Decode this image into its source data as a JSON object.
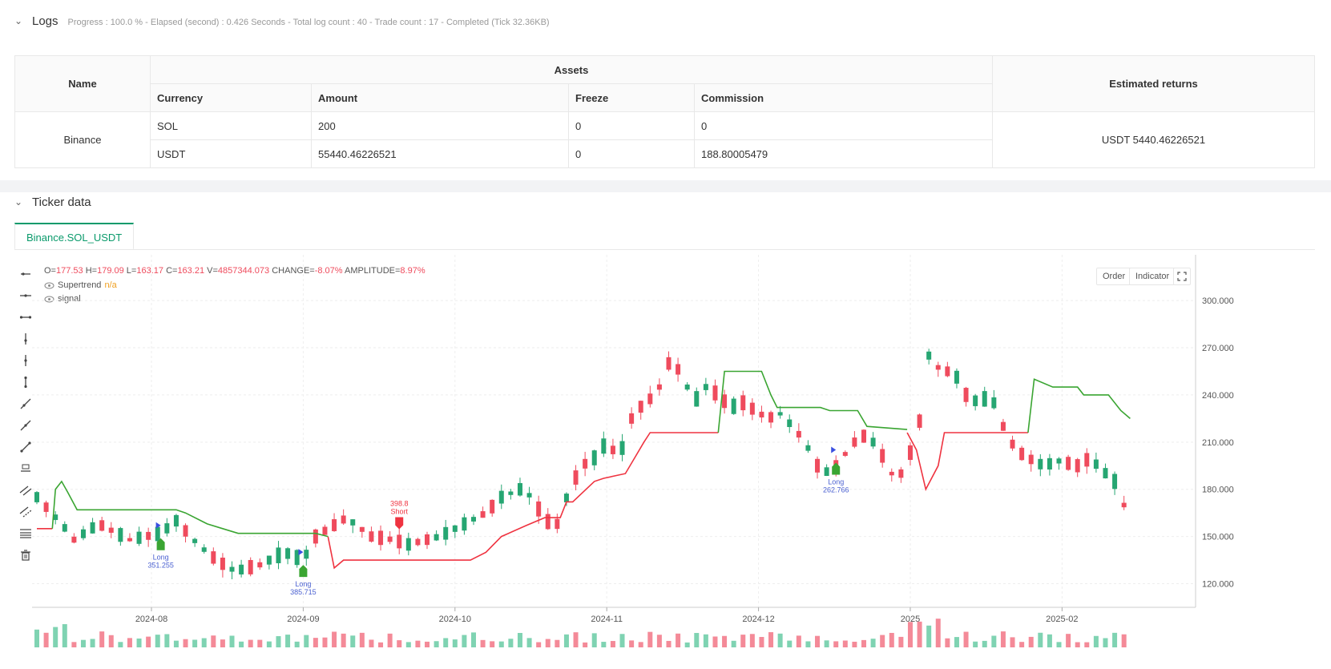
{
  "logs": {
    "title": "Logs",
    "meta": "Progress : 100.0 % - Elapsed (second) : 0.426  Seconds - Total log count : 40 - Trade count : 17 - Completed (Tick 32.36KB)",
    "table": {
      "col_name": "Name",
      "col_assets": "Assets",
      "col_returns": "Estimated returns",
      "sub_headers": [
        "Currency",
        "Amount",
        "Freeze",
        "Commission"
      ],
      "exchange": "Binance",
      "rows": [
        {
          "currency": "SOL",
          "amount": "200",
          "freeze": "0",
          "commission": "0"
        },
        {
          "currency": "USDT",
          "amount": "55440.46226521",
          "freeze": "0",
          "commission": "188.80005479"
        }
      ],
      "estimated_returns": "USDT 5440.46226521"
    }
  },
  "ticker": {
    "title": "Ticker data",
    "tab_label": "Binance.SOL_USDT",
    "ohlc": {
      "o_label": "O=",
      "o": "177.53",
      "h_label": "H=",
      "h": "179.09",
      "l_label": "L=",
      "l": "163.17",
      "c_label": "C=",
      "c": "163.21",
      "v_label": "V=",
      "v": "4857344.073",
      "change_label": "CHANGE=",
      "change": "-8.07%",
      "amp_label": "AMPLITUDE=",
      "amp": "8.97%"
    },
    "indicators": [
      {
        "name": "Supertrend",
        "value": "n/a"
      },
      {
        "name": "signal",
        "value": ""
      }
    ],
    "buttons": {
      "order": "Order",
      "indicator": "Indicator"
    },
    "colors": {
      "up": "#26a672",
      "down": "#ef4b5d",
      "vol_up": "#7fd3b2",
      "vol_down": "#f48a98",
      "st_up": "#ef3340",
      "st_down": "#3aa532",
      "accent": "#0a9a6b"
    }
  },
  "chart_data": {
    "type": "candlestick",
    "x_ticks": [
      "2024-08",
      "2024-09",
      "2024-10",
      "2024-11",
      "2024-12",
      "2025",
      "2025-02"
    ],
    "y_ticks": [
      "300.0000",
      "270.0000",
      "240.0000",
      "210.0000",
      "180.0000",
      "150.0000",
      "120.0000"
    ],
    "y_range": [
      105,
      325
    ],
    "supertrend_up_segments": [
      [
        [
          0,
          155
        ],
        [
          5,
          155
        ]
      ],
      [
        [
          94,
          150
        ],
        [
          96,
          130
        ],
        [
          99,
          135
        ],
        [
          140,
          135
        ],
        [
          145,
          140
        ],
        [
          150,
          150
        ],
        [
          158,
          157
        ],
        [
          164,
          162
        ],
        [
          169,
          162
        ],
        [
          171,
          172
        ],
        [
          173,
          172
        ],
        [
          180,
          185
        ],
        [
          183,
          187
        ],
        [
          190,
          190
        ],
        [
          193,
          200
        ],
        [
          196,
          210
        ],
        [
          198,
          216
        ],
        [
          220,
          216
        ]
      ],
      [
        [
          281,
          216
        ],
        [
          284,
          205
        ],
        [
          287,
          180
        ],
        [
          291,
          195
        ],
        [
          293,
          216
        ],
        [
          320,
          216
        ]
      ]
    ],
    "supertrend_down_segments": [
      [
        [
          5,
          155
        ],
        [
          6,
          180
        ],
        [
          8,
          185
        ],
        [
          10,
          178
        ],
        [
          13,
          167
        ],
        [
          45,
          167
        ],
        [
          48,
          165
        ],
        [
          55,
          158
        ],
        [
          60,
          155
        ],
        [
          65,
          152
        ],
        [
          90,
          152
        ],
        [
          94,
          150
        ]
      ],
      [
        [
          220,
          216
        ],
        [
          222,
          255
        ],
        [
          234,
          255
        ],
        [
          237,
          240
        ],
        [
          239,
          232
        ],
        [
          253,
          232
        ],
        [
          256,
          230
        ],
        [
          265,
          230
        ],
        [
          268,
          220
        ],
        [
          281,
          218
        ]
      ],
      [
        [
          320,
          216
        ],
        [
          322,
          250
        ],
        [
          328,
          245
        ],
        [
          336,
          245
        ],
        [
          338,
          240
        ],
        [
          346,
          240
        ],
        [
          350,
          230
        ],
        [
          353,
          225
        ]
      ]
    ],
    "signals": [
      {
        "label": "Long",
        "price": "351.255",
        "x_index": 40,
        "type": "long"
      },
      {
        "label": "Long",
        "price": "385.715",
        "x_index": 86,
        "type": "long"
      },
      {
        "label": "Short",
        "price": "398.8",
        "x_index": 117,
        "type": "short"
      },
      {
        "label": "Long",
        "price": "262.766",
        "x_index": 258,
        "type": "long"
      }
    ]
  }
}
